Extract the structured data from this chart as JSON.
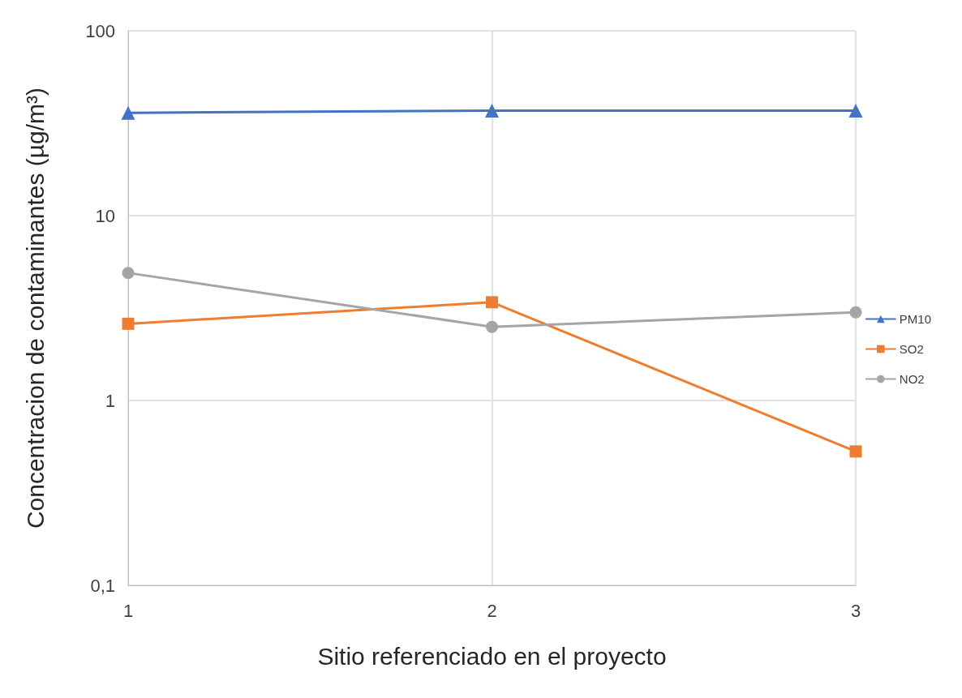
{
  "chart_data": {
    "type": "line",
    "xlabel": "Sitio referenciado en el proyecto",
    "ylabel": "Concentracion de contaminantes (µg/m³)",
    "x": [
      1,
      2,
      3
    ],
    "xlim": [
      1,
      3
    ],
    "xticks": [
      1,
      2,
      3
    ],
    "ylim": [
      0.1,
      100
    ],
    "yticks": [
      {
        "value": 0.1,
        "label": "0,1"
      },
      1,
      10,
      100
    ],
    "log": "y",
    "grid": true,
    "legend": "right",
    "series": [
      {
        "name": "PM10",
        "color": "#4472c4",
        "marker": "triangle",
        "values": [
          36,
          37,
          37
        ]
      },
      {
        "name": "SO2",
        "color": "#ed7d31",
        "marker": "square",
        "values": [
          2.6,
          3.4,
          0.53
        ]
      },
      {
        "name": "NO2",
        "color": "#a5a5a5",
        "marker": "circle",
        "values": [
          4.9,
          2.5,
          3.0
        ]
      }
    ]
  }
}
